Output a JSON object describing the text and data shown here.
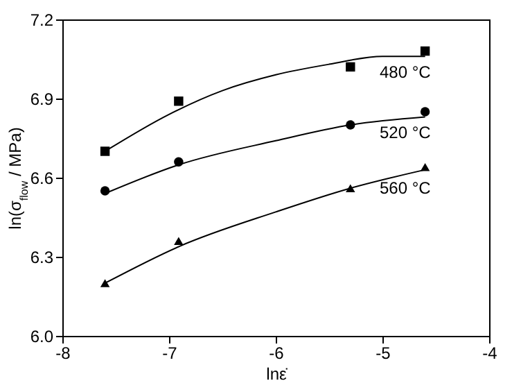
{
  "chart_data": {
    "type": "scatter",
    "xlabel": "lnε̇",
    "ylabel": "ln(σ$_{flow}$ / MPa)",
    "xlim": [
      -8,
      -4
    ],
    "xticks": [
      -8,
      -7,
      -6,
      -5,
      -4
    ],
    "ylim": [
      6.0,
      7.2
    ],
    "yticks": [
      {
        "value": 6,
        "label": "6.0"
      },
      6.3,
      6.6,
      6.9,
      7.2
    ],
    "grid": false,
    "x": [
      -7.6,
      -6.91,
      -5.3,
      -4.6
    ],
    "series": [
      {
        "name": "480 °C",
        "marker": "square",
        "color": "#000000",
        "values": [
          6.7,
          6.89,
          7.02,
          7.08
        ]
      },
      {
        "name": "520 °C",
        "marker": "circle",
        "color": "#000000",
        "values": [
          6.55,
          6.66,
          6.8,
          6.85
        ]
      },
      {
        "name": "560 °C",
        "marker": "triangle",
        "color": "#000000",
        "values": [
          6.2,
          6.36,
          6.56,
          6.64
        ]
      },
      {
        "type": "line",
        "color": "#000000",
        "x": [
          -7.6,
          -7.0,
          -6.5,
          -6.0,
          -5.5,
          -5.0,
          -4.6
        ],
        "values": [
          6.7,
          6.84,
          6.93,
          6.99,
          7.03,
          7.06,
          7.06
        ]
      },
      {
        "type": "line",
        "color": "#000000",
        "x": [
          -7.6,
          -6.9,
          -6.0,
          -5.3,
          -4.6
        ],
        "values": [
          6.54,
          6.65,
          6.74,
          6.8,
          6.83
        ]
      },
      {
        "type": "line",
        "color": "#000000",
        "x": [
          -7.6,
          -6.9,
          -6.0,
          -5.3,
          -4.6
        ],
        "values": [
          6.2,
          6.34,
          6.47,
          6.56,
          6.63
        ]
      }
    ]
  }
}
